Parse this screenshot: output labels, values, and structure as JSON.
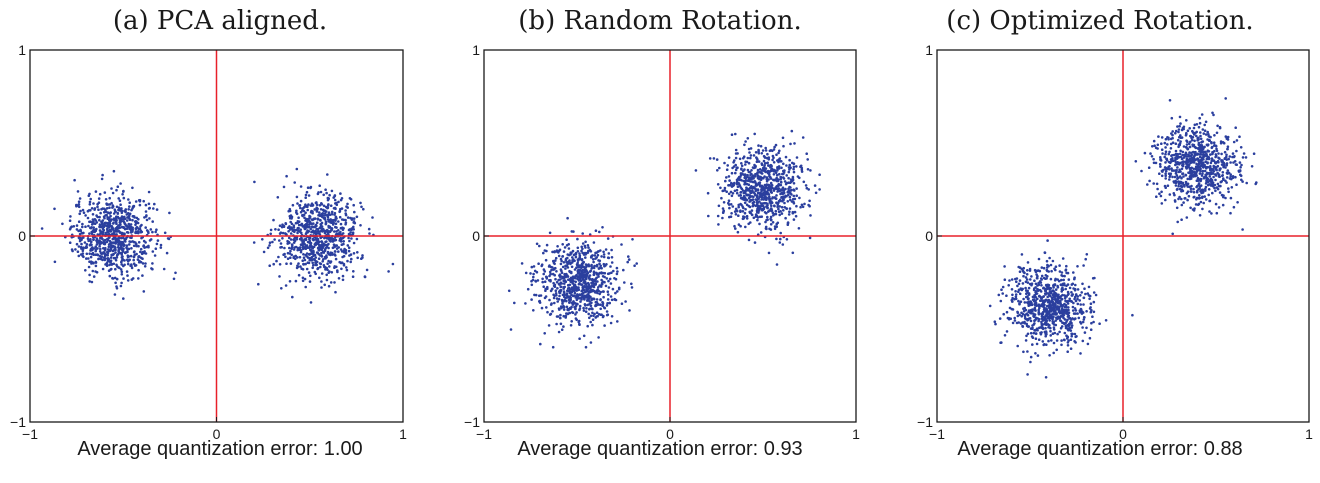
{
  "chart_data": [
    {
      "type": "scatter",
      "title": "(a) PCA aligned.",
      "caption": "Average quantization error: 1.00",
      "xlim": [
        -1,
        1
      ],
      "ylim": [
        -1,
        1
      ],
      "xticks": [
        "−1",
        "0",
        "1"
      ],
      "yticks": [
        "1",
        "0",
        "−1"
      ],
      "reference_lines": {
        "x": 0,
        "y": 0,
        "color": "#e8202a"
      },
      "point_color": "#2b3f9e",
      "clusters": [
        {
          "center": [
            -0.55,
            0.0
          ],
          "spread": [
            0.11,
            0.11
          ],
          "count": 800
        },
        {
          "center": [
            0.55,
            0.0
          ],
          "spread": [
            0.11,
            0.11
          ],
          "count": 800
        }
      ]
    },
    {
      "type": "scatter",
      "title": "(b) Random Rotation.",
      "caption": "Average quantization error: 0.93",
      "xlim": [
        -1,
        1
      ],
      "ylim": [
        -1,
        1
      ],
      "xticks": [
        "−1",
        "0",
        "1"
      ],
      "yticks": [
        "1",
        "0",
        "−1"
      ],
      "reference_lines": {
        "x": 0,
        "y": 0,
        "color": "#e8202a"
      },
      "point_color": "#2b3f9e",
      "clusters": [
        {
          "center": [
            -0.5,
            -0.25
          ],
          "spread": [
            0.11,
            0.11
          ],
          "count": 800
        },
        {
          "center": [
            0.5,
            0.25
          ],
          "spread": [
            0.11,
            0.11
          ],
          "count": 800
        }
      ]
    },
    {
      "type": "scatter",
      "title": "(c) Optimized Rotation.",
      "caption": "Average quantization error: 0.88",
      "xlim": [
        -1,
        1
      ],
      "ylim": [
        -1,
        1
      ],
      "xticks": [
        "−1",
        "0",
        "1"
      ],
      "yticks": [
        "1",
        "0",
        "−1"
      ],
      "reference_lines": {
        "x": 0,
        "y": 0,
        "color": "#e8202a"
      },
      "point_color": "#2b3f9e",
      "clusters": [
        {
          "center": [
            -0.4,
            -0.38
          ],
          "spread": [
            0.11,
            0.11
          ],
          "count": 800
        },
        {
          "center": [
            0.4,
            0.38
          ],
          "spread": [
            0.11,
            0.11
          ],
          "count": 800
        }
      ]
    }
  ]
}
